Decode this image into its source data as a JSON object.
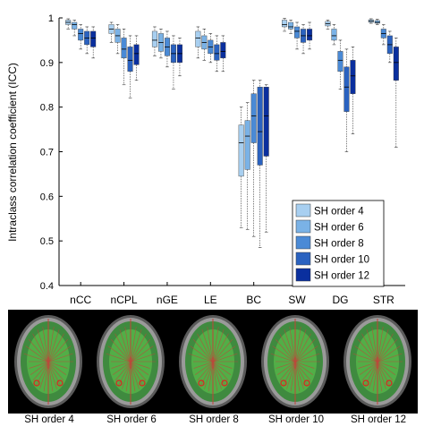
{
  "chart_data": {
    "type": "box",
    "categories": [
      "nCC",
      "nCPL",
      "nGE",
      "LE",
      "BC",
      "SW",
      "DG",
      "STR"
    ],
    "ylabel": "Intraclass correlation coefficient (ICC)",
    "xlabel": "",
    "title": "",
    "ylim": [
      0.4,
      1.0
    ],
    "yticks": [
      0.4,
      0.5,
      0.6,
      0.7,
      0.8,
      0.9,
      1.0
    ],
    "ytick_labels": [
      "0.4",
      "0.5",
      "0.6",
      "0.7",
      "0.8",
      "0.9",
      "1"
    ],
    "legend_position": "lower-right",
    "series": [
      {
        "name": "SH order 4",
        "color": "#a8cff0",
        "boxes": [
          {
            "min": 0.975,
            "q1": 0.985,
            "median": 0.99,
            "q3": 0.995,
            "max": 0.998
          },
          {
            "min": 0.945,
            "q1": 0.965,
            "median": 0.975,
            "q3": 0.985,
            "max": 0.99
          },
          {
            "min": 0.915,
            "q1": 0.935,
            "median": 0.95,
            "q3": 0.97,
            "max": 0.98
          },
          {
            "min": 0.91,
            "q1": 0.935,
            "median": 0.955,
            "q3": 0.97,
            "max": 0.98
          },
          {
            "min": 0.53,
            "q1": 0.645,
            "median": 0.72,
            "q3": 0.76,
            "max": 0.8
          },
          {
            "min": 0.97,
            "q1": 0.98,
            "median": 0.985,
            "q3": 0.995,
            "max": 0.999
          },
          {
            "min": 0.975,
            "q1": 0.982,
            "median": 0.987,
            "q3": 0.992,
            "max": 0.995
          },
          {
            "min": 0.988,
            "q1": 0.99,
            "median": 0.993,
            "q3": 0.996,
            "max": 0.998
          }
        ]
      },
      {
        "name": "SH order 6",
        "color": "#7ab2e6",
        "boxes": [
          {
            "min": 0.96,
            "q1": 0.975,
            "median": 0.985,
            "q3": 0.99,
            "max": 0.995
          },
          {
            "min": 0.92,
            "q1": 0.945,
            "median": 0.96,
            "q3": 0.975,
            "max": 0.985
          },
          {
            "min": 0.91,
            "q1": 0.925,
            "median": 0.945,
            "q3": 0.965,
            "max": 0.975
          },
          {
            "min": 0.905,
            "q1": 0.93,
            "median": 0.945,
            "q3": 0.96,
            "max": 0.975
          },
          {
            "min": 0.525,
            "q1": 0.66,
            "median": 0.735,
            "q3": 0.77,
            "max": 0.81
          },
          {
            "min": 0.965,
            "q1": 0.975,
            "median": 0.98,
            "q3": 0.99,
            "max": 0.995
          },
          {
            "min": 0.94,
            "q1": 0.95,
            "median": 0.96,
            "q3": 0.975,
            "max": 0.985
          },
          {
            "min": 0.985,
            "q1": 0.988,
            "median": 0.99,
            "q3": 0.994,
            "max": 0.997
          }
        ]
      },
      {
        "name": "SH order 8",
        "color": "#4a8ad6",
        "boxes": [
          {
            "min": 0.93,
            "q1": 0.95,
            "median": 0.965,
            "q3": 0.975,
            "max": 0.985
          },
          {
            "min": 0.85,
            "q1": 0.91,
            "median": 0.93,
            "q3": 0.955,
            "max": 0.975
          },
          {
            "min": 0.89,
            "q1": 0.915,
            "median": 0.935,
            "q3": 0.955,
            "max": 0.97
          },
          {
            "min": 0.9,
            "q1": 0.92,
            "median": 0.935,
            "q3": 0.95,
            "max": 0.965
          },
          {
            "min": 0.51,
            "q1": 0.72,
            "median": 0.78,
            "q3": 0.83,
            "max": 0.86
          },
          {
            "min": 0.93,
            "q1": 0.955,
            "median": 0.97,
            "q3": 0.98,
            "max": 0.99
          },
          {
            "min": 0.84,
            "q1": 0.88,
            "median": 0.905,
            "q3": 0.925,
            "max": 0.95
          },
          {
            "min": 0.94,
            "q1": 0.955,
            "median": 0.965,
            "q3": 0.975,
            "max": 0.985
          }
        ]
      },
      {
        "name": "SH order 10",
        "color": "#2a62c0",
        "boxes": [
          {
            "min": 0.92,
            "q1": 0.94,
            "median": 0.955,
            "q3": 0.97,
            "max": 0.98
          },
          {
            "min": 0.82,
            "q1": 0.88,
            "median": 0.905,
            "q3": 0.935,
            "max": 0.96
          },
          {
            "min": 0.84,
            "q1": 0.9,
            "median": 0.92,
            "q3": 0.94,
            "max": 0.96
          },
          {
            "min": 0.88,
            "q1": 0.905,
            "median": 0.92,
            "q3": 0.94,
            "max": 0.96
          },
          {
            "min": 0.485,
            "q1": 0.67,
            "median": 0.745,
            "q3": 0.845,
            "max": 0.86
          },
          {
            "min": 0.92,
            "q1": 0.945,
            "median": 0.96,
            "q3": 0.975,
            "max": 0.985
          },
          {
            "min": 0.7,
            "q1": 0.79,
            "median": 0.845,
            "q3": 0.89,
            "max": 0.93
          },
          {
            "min": 0.9,
            "q1": 0.92,
            "median": 0.94,
            "q3": 0.96,
            "max": 0.97
          }
        ]
      },
      {
        "name": "SH order 12",
        "color": "#0a2f9e",
        "boxes": [
          {
            "min": 0.91,
            "q1": 0.935,
            "median": 0.955,
            "q3": 0.97,
            "max": 0.98
          },
          {
            "min": 0.86,
            "q1": 0.895,
            "median": 0.92,
            "q3": 0.94,
            "max": 0.96
          },
          {
            "min": 0.87,
            "q1": 0.9,
            "median": 0.92,
            "q3": 0.94,
            "max": 0.955
          },
          {
            "min": 0.88,
            "q1": 0.91,
            "median": 0.925,
            "q3": 0.945,
            "max": 0.96
          },
          {
            "min": 0.52,
            "q1": 0.69,
            "median": 0.78,
            "q3": 0.845,
            "max": 0.85
          },
          {
            "min": 0.93,
            "q1": 0.95,
            "median": 0.96,
            "q3": 0.975,
            "max": 0.99
          },
          {
            "min": 0.74,
            "q1": 0.83,
            "median": 0.87,
            "q3": 0.905,
            "max": 0.935
          },
          {
            "min": 0.71,
            "q1": 0.86,
            "median": 0.9,
            "q3": 0.935,
            "max": 0.955
          }
        ]
      }
    ]
  },
  "panels": {
    "captions": [
      "SH order 4",
      "SH order 6",
      "SH order 8",
      "SH order 10",
      "SH order 12"
    ]
  }
}
